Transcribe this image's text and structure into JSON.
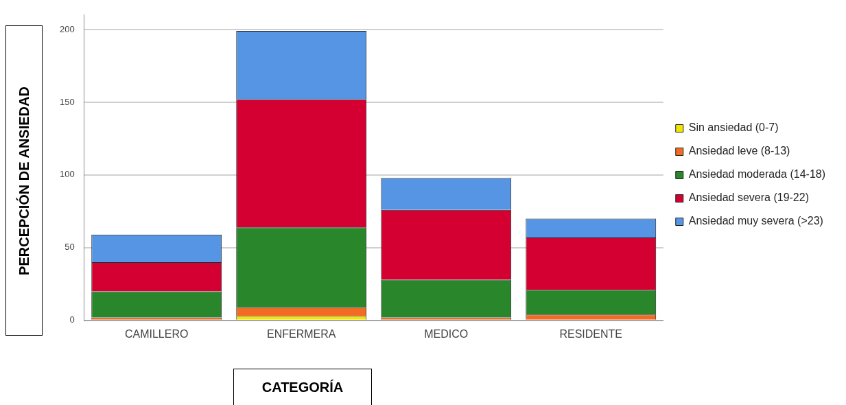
{
  "chart_data": {
    "type": "bar",
    "stacked": true,
    "xlabel": "CATEGORÍA",
    "ylabel": "PERCEPCIÓN DE ANSIEDAD",
    "categories": [
      "CAMILLERO",
      "ENFERMERA",
      "MEDICO",
      "RESIDENTE"
    ],
    "series": [
      {
        "name": "Sin ansiedad (0-7)",
        "color": "#f2e600",
        "values": [
          0,
          3,
          0,
          0
        ]
      },
      {
        "name": "Ansiedad leve (8-13)",
        "color": "#f26b24",
        "values": [
          2,
          6,
          2,
          4
        ]
      },
      {
        "name": "Ansiedad moderada (14-18)",
        "color": "#2a862a",
        "values": [
          18,
          55,
          26,
          17
        ]
      },
      {
        "name": "Ansiedad severa (19-22)",
        "color": "#d50032",
        "values": [
          20,
          88,
          48,
          36
        ]
      },
      {
        "name": "Ansiedad muy severa (>23)",
        "color": "#5595e3",
        "values": [
          19,
          47,
          22,
          13
        ]
      }
    ],
    "ylim": [
      0,
      210
    ],
    "yticks": [
      0,
      50,
      100,
      150,
      200
    ],
    "grid": "y",
    "legend": "right"
  }
}
